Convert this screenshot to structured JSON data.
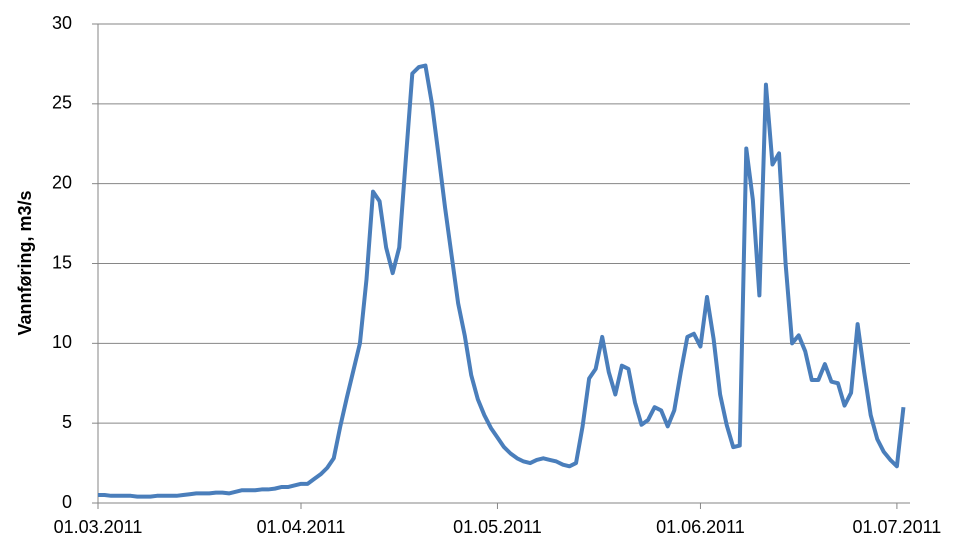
{
  "chart_data": {
    "type": "line",
    "y_label": "Vannføring, m3/s",
    "x": [
      "01.03.2011",
      "02.03.2011",
      "03.03.2011",
      "04.03.2011",
      "05.03.2011",
      "06.03.2011",
      "07.03.2011",
      "08.03.2011",
      "09.03.2011",
      "10.03.2011",
      "11.03.2011",
      "12.03.2011",
      "13.03.2011",
      "14.03.2011",
      "15.03.2011",
      "16.03.2011",
      "17.03.2011",
      "18.03.2011",
      "19.03.2011",
      "20.03.2011",
      "21.03.2011",
      "22.03.2011",
      "23.03.2011",
      "24.03.2011",
      "25.03.2011",
      "26.03.2011",
      "27.03.2011",
      "28.03.2011",
      "29.03.2011",
      "30.03.2011",
      "31.03.2011",
      "01.04.2011",
      "02.04.2011",
      "03.04.2011",
      "04.04.2011",
      "05.04.2011",
      "06.04.2011",
      "07.04.2011",
      "08.04.2011",
      "09.04.2011",
      "10.04.2011",
      "11.04.2011",
      "12.04.2011",
      "13.04.2011",
      "14.04.2011",
      "15.04.2011",
      "16.04.2011",
      "17.04.2011",
      "18.04.2011",
      "19.04.2011",
      "20.04.2011",
      "21.04.2011",
      "22.04.2011",
      "23.04.2011",
      "24.04.2011",
      "25.04.2011",
      "26.04.2011",
      "27.04.2011",
      "28.04.2011",
      "29.04.2011",
      "30.04.2011",
      "01.05.2011",
      "02.05.2011",
      "03.05.2011",
      "04.05.2011",
      "05.05.2011",
      "06.05.2011",
      "07.05.2011",
      "08.05.2011",
      "09.05.2011",
      "10.05.2011",
      "11.05.2011",
      "12.05.2011",
      "13.05.2011",
      "14.05.2011",
      "15.05.2011",
      "16.05.2011",
      "17.05.2011",
      "18.05.2011",
      "19.05.2011",
      "20.05.2011",
      "21.05.2011",
      "22.05.2011",
      "23.05.2011",
      "24.05.2011",
      "25.05.2011",
      "26.05.2011",
      "27.05.2011",
      "28.05.2011",
      "29.05.2011",
      "30.05.2011",
      "31.05.2011",
      "01.06.2011",
      "02.06.2011",
      "03.06.2011",
      "04.06.2011",
      "05.06.2011",
      "06.06.2011",
      "07.06.2011",
      "08.06.2011",
      "09.06.2011",
      "10.06.2011",
      "11.06.2011",
      "12.06.2011",
      "13.06.2011",
      "14.06.2011",
      "15.06.2011",
      "16.06.2011",
      "17.06.2011",
      "18.06.2011",
      "19.06.2011",
      "20.06.2011",
      "21.06.2011",
      "22.06.2011",
      "23.06.2011",
      "24.06.2011",
      "25.06.2011",
      "26.06.2011",
      "27.06.2011",
      "28.06.2011",
      "29.06.2011",
      "30.06.2011",
      "01.07.2011",
      "02.07.2011"
    ],
    "series": [
      {
        "color": "#4a7ebb",
        "values": [
          0.5,
          0.5,
          0.45,
          0.45,
          0.45,
          0.45,
          0.4,
          0.4,
          0.4,
          0.45,
          0.45,
          0.45,
          0.45,
          0.5,
          0.55,
          0.6,
          0.6,
          0.6,
          0.65,
          0.65,
          0.6,
          0.7,
          0.8,
          0.8,
          0.8,
          0.85,
          0.85,
          0.9,
          1.0,
          1.0,
          1.1,
          1.2,
          1.2,
          1.5,
          1.8,
          2.2,
          2.8,
          4.8,
          6.6,
          8.3,
          10,
          14,
          19.5,
          18.9,
          16,
          14.4,
          16,
          21.5,
          26.9,
          27.3,
          27.4,
          25,
          21.8,
          18.5,
          15.5,
          12.5,
          10.5,
          8,
          6.5,
          5.5,
          4.7,
          4.1,
          3.5,
          3.1,
          2.8,
          2.6,
          2.5,
          2.7,
          2.8,
          2.7,
          2.6,
          2.4,
          2.3,
          2.5,
          4.8,
          7.8,
          8.4,
          10.4,
          8.2,
          6.8,
          8.6,
          8.4,
          6.3,
          4.9,
          5.2,
          6,
          5.8,
          4.8,
          5.8,
          8.2,
          10.4,
          10.6,
          9.8,
          12.9,
          10.3,
          6.8,
          4.9,
          3.5,
          3.6,
          22.2,
          19,
          13,
          26.2,
          21.2,
          21.9,
          15,
          10,
          10.5,
          9.5,
          7.7,
          7.7,
          8.7,
          7.6,
          7.5,
          6.1,
          6.9,
          11.2,
          8.2,
          5.5,
          4,
          3.2,
          2.7,
          2.3,
          6
        ]
      }
    ],
    "xlim": [
      "01.03.2011",
      "03.07.2011"
    ],
    "xticks": [
      "01.03.2011",
      "01.04.2011",
      "01.05.2011",
      "01.06.2011",
      "01.07.2011"
    ],
    "ylim": [
      0,
      30
    ],
    "yticks": [
      0,
      5,
      10,
      15,
      20,
      25,
      30
    ],
    "grid": true
  }
}
